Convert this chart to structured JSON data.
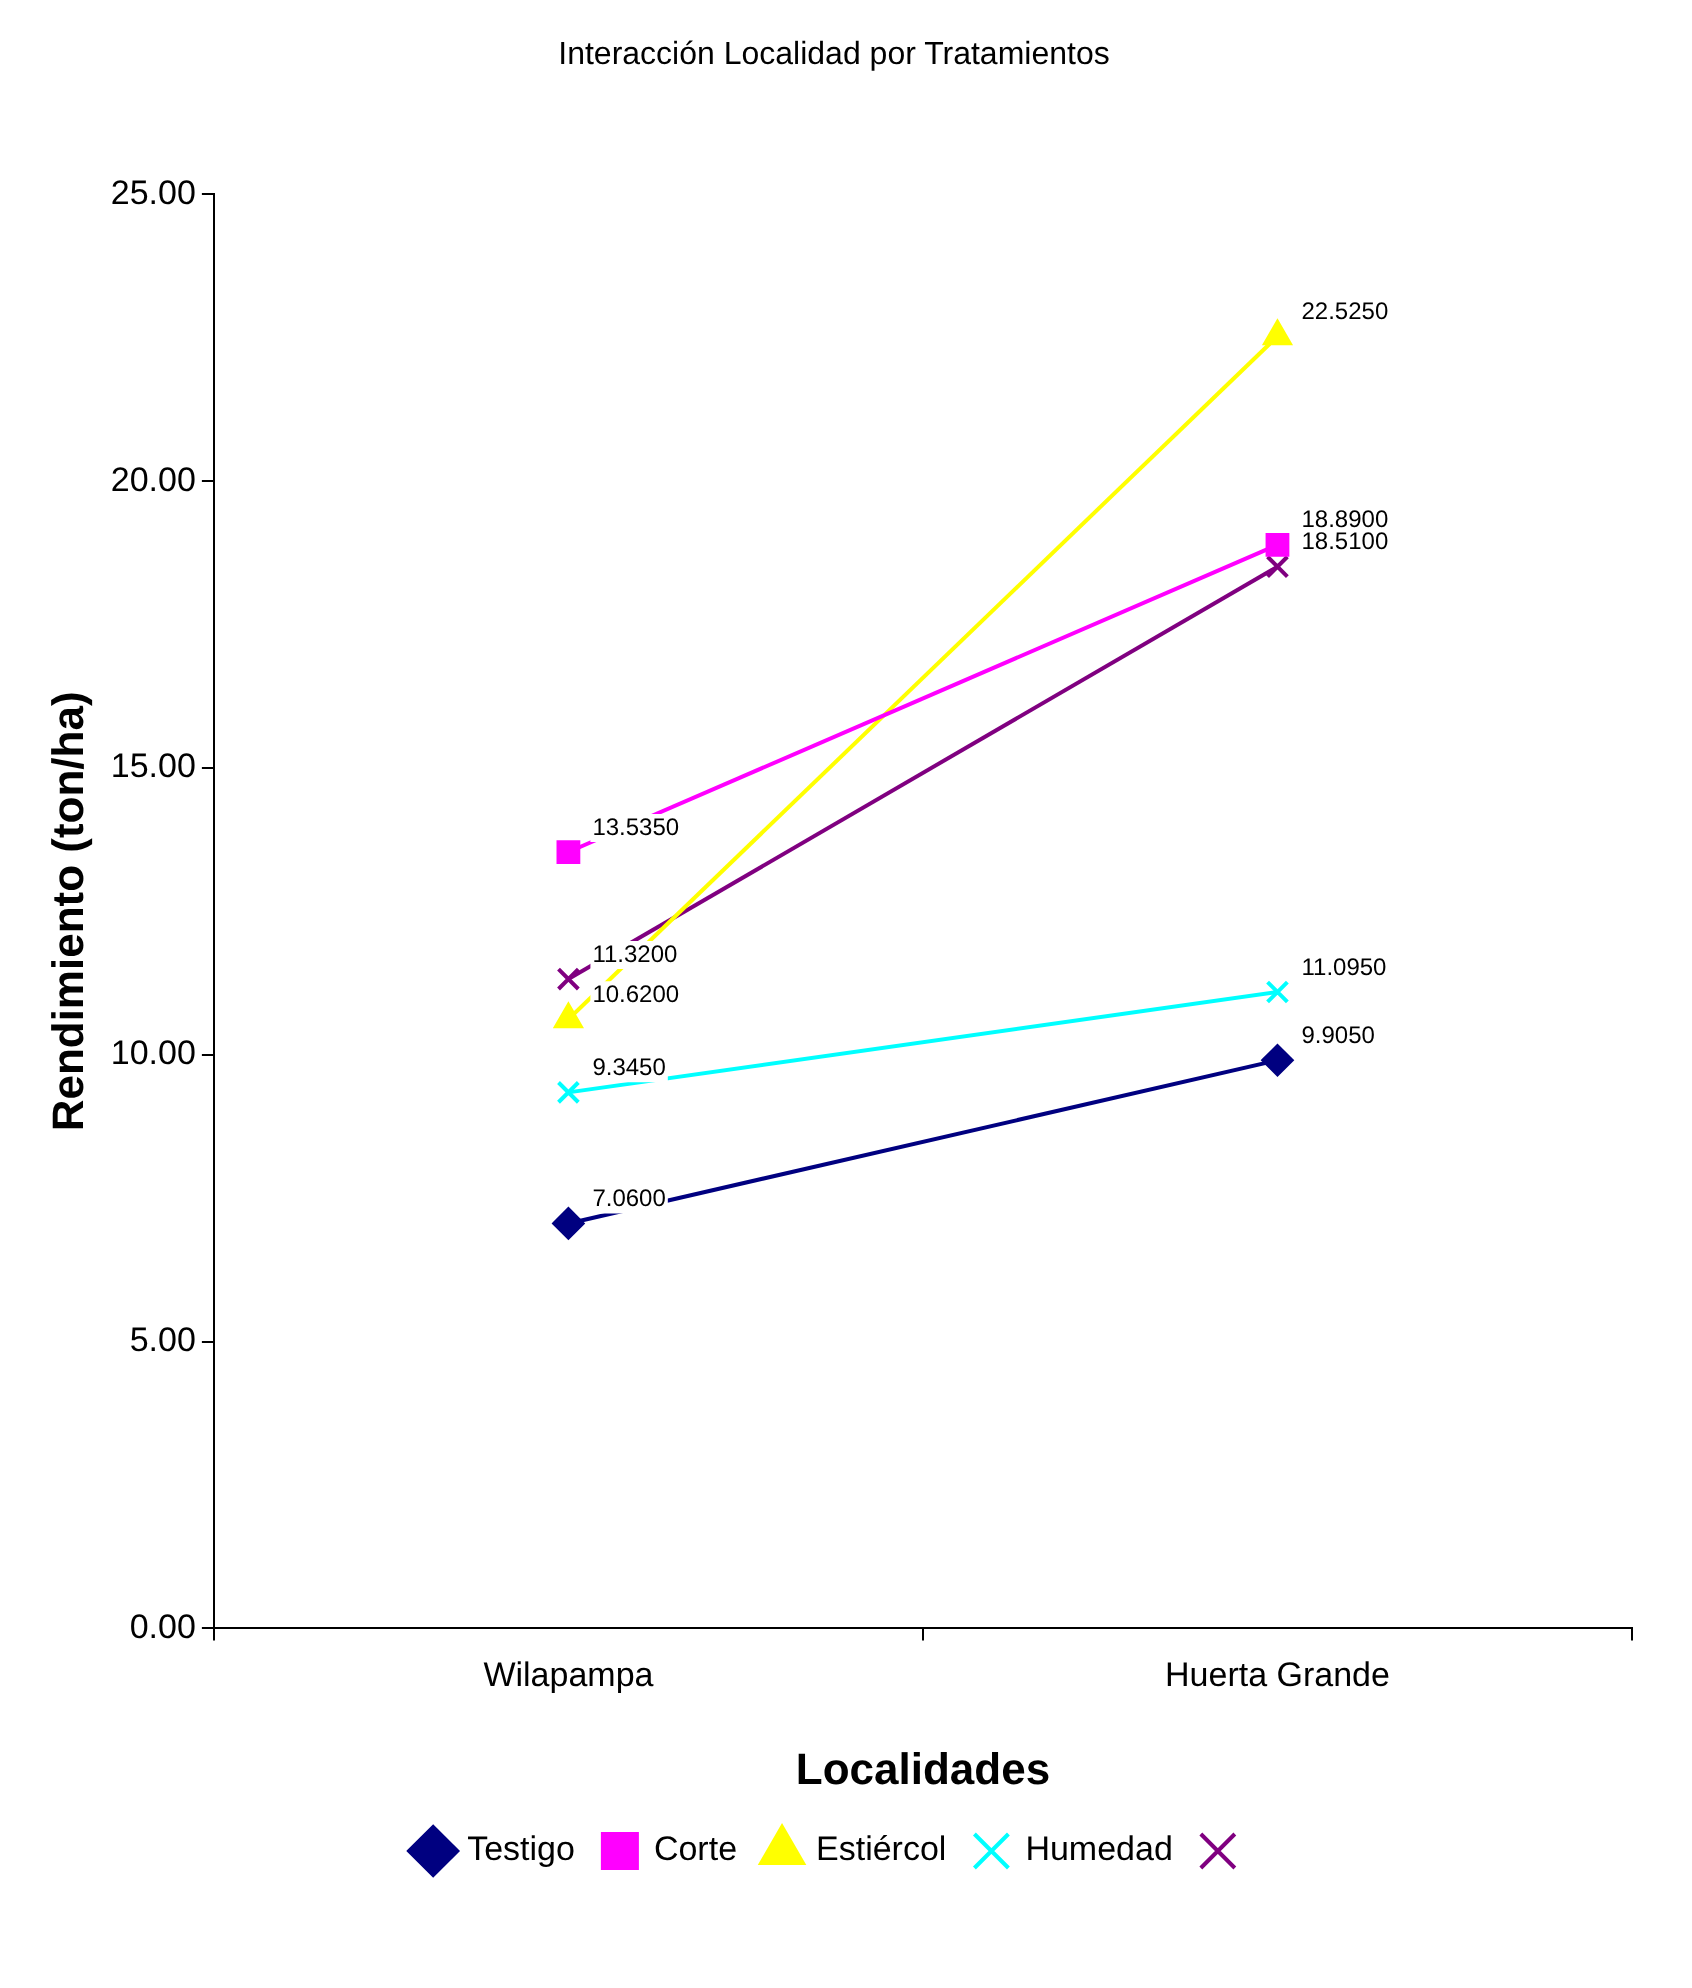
{
  "chart_data": {
    "type": "line",
    "title": "Interacción Localidad por Tratamientos",
    "xlabel": "Localidades",
    "ylabel": "Rendimiento (ton/ha)",
    "categories": [
      "Wilapampa",
      "Huerta Grande"
    ],
    "series": [
      {
        "name": "Testigo",
        "color": "#000080",
        "marker": "diamond",
        "values": [
          7.06,
          9.905
        ],
        "value_labels": [
          "7.0600",
          "9.9050"
        ]
      },
      {
        "name": "Corte",
        "color": "#ff00ff",
        "marker": "square",
        "values": [
          13.535,
          18.89
        ],
        "value_labels": [
          "13.5350",
          "18.8900"
        ]
      },
      {
        "name": "Estiércol",
        "color": "#ffff00",
        "marker": "triangle",
        "values": [
          10.62,
          22.525
        ],
        "value_labels": [
          "10.6200",
          "22.5250"
        ]
      },
      {
        "name": "Humedad",
        "color": "#00ffff",
        "marker": "cross",
        "values": [
          9.345,
          11.095
        ],
        "value_labels": [
          "9.3450",
          "11.0950"
        ]
      },
      {
        "color": "#800080",
        "marker": "cross",
        "values": [
          11.32,
          18.51
        ],
        "value_labels": [
          "11.3200",
          "18.5100"
        ]
      }
    ],
    "ylim": [
      0,
      25
    ],
    "yticks": [
      {
        "value": 0,
        "label": "0.00"
      },
      {
        "value": 5,
        "label": "5.00"
      },
      {
        "value": 10,
        "label": "10.00"
      },
      {
        "value": 15,
        "label": "15.00"
      },
      {
        "value": 20,
        "label": "20.00"
      },
      {
        "value": 25,
        "label": "25.00"
      }
    ],
    "grid": false,
    "legend": "bottom",
    "line_style": "solid"
  }
}
